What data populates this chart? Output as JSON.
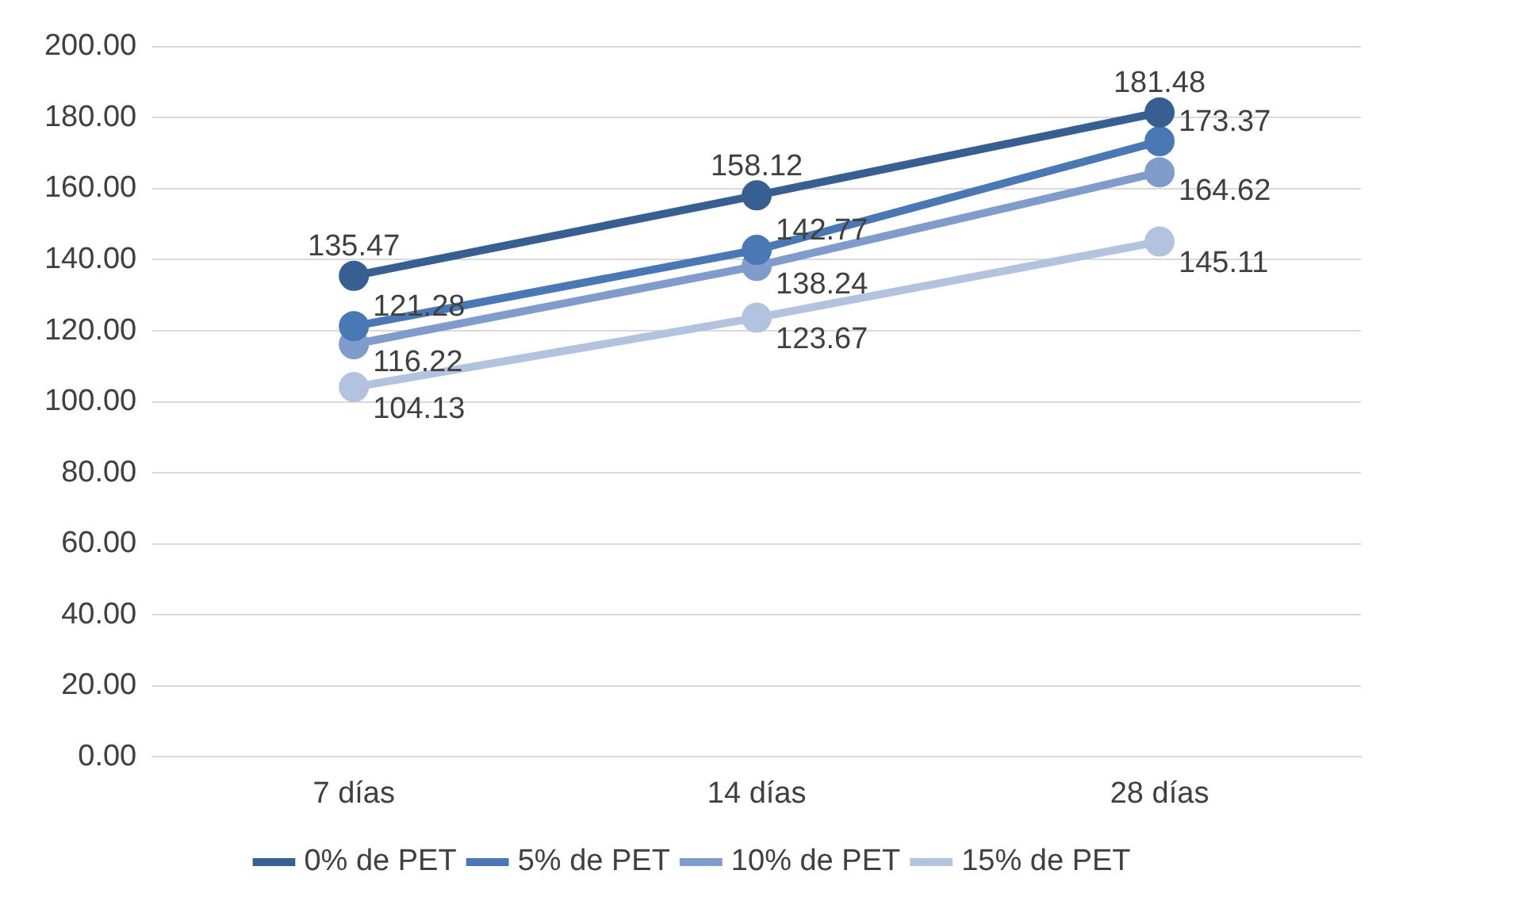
{
  "chart_data": {
    "type": "line",
    "categories": [
      "7 días",
      "14 días",
      "28 días"
    ],
    "series": [
      {
        "name": "0% de PET",
        "color": "#375f91",
        "values": [
          135.47,
          158.12,
          181.48
        ]
      },
      {
        "name": "5% de PET",
        "color": "#4a78b5",
        "values": [
          121.28,
          142.77,
          173.37
        ]
      },
      {
        "name": "10% de PET",
        "color": "#7f9ccb",
        "values": [
          116.22,
          138.24,
          164.62
        ]
      },
      {
        "name": "15% de PET",
        "color": "#b3c3df",
        "values": [
          104.13,
          123.67,
          145.11
        ]
      }
    ],
    "ylim": [
      0,
      200
    ],
    "yticks": [
      {
        "value": 0,
        "label": "0.00"
      },
      {
        "value": 20,
        "label": "20.00"
      },
      {
        "value": 40,
        "label": "40.00"
      },
      {
        "value": 60,
        "label": "60.00"
      },
      {
        "value": 80,
        "label": "80.00"
      },
      {
        "value": 100,
        "label": "100.00"
      },
      {
        "value": 120,
        "label": "120.00"
      },
      {
        "value": 140,
        "label": "140.00"
      },
      {
        "value": 160,
        "label": "160.00"
      },
      {
        "value": 180,
        "label": "180.00"
      },
      {
        "value": 200,
        "label": "200.00"
      }
    ],
    "grid": "y",
    "legend": "bottom",
    "marker": "circle",
    "line_style": "solid",
    "data_labels": true
  }
}
